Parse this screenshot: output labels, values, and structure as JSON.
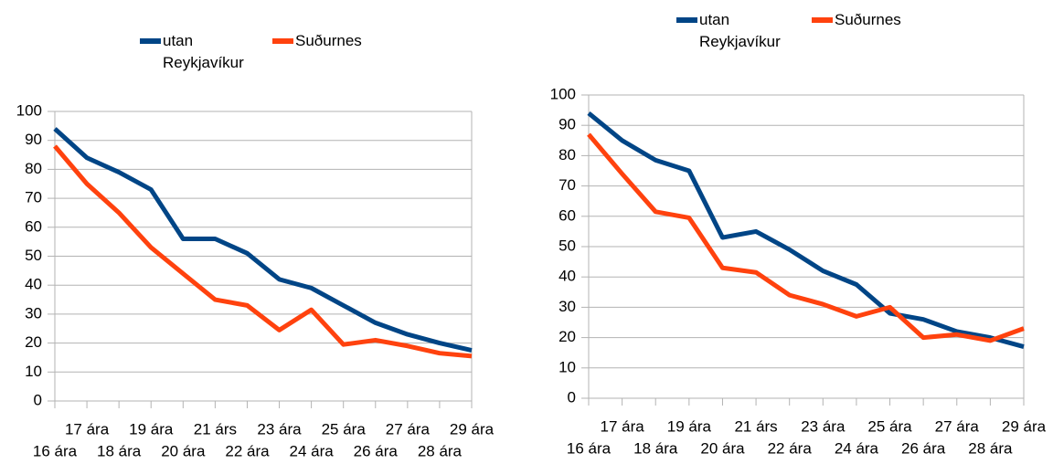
{
  "chart_data": [
    {
      "type": "line",
      "categories": [
        "16 ára",
        "17 ára",
        "18 ára",
        "19 ára",
        "20 ára",
        "21 árs",
        "22 ára",
        "23 ára",
        "24 ára",
        "25 ára",
        "26 ára",
        "27 ára",
        "28 ára",
        "29 ára"
      ],
      "series": [
        {
          "name": "utan Reykjavíkur",
          "color": "#004586",
          "values": [
            94,
            84,
            79,
            73,
            56,
            56,
            51,
            42,
            39,
            33,
            27,
            23,
            20,
            17.5
          ]
        },
        {
          "name": "Suðurnes",
          "color": "#ff420e",
          "values": [
            88,
            75,
            65,
            53,
            44,
            35,
            33,
            24.5,
            31.5,
            19.5,
            21,
            19,
            16.5,
            15.5
          ]
        }
      ],
      "ylim": [
        0,
        100
      ],
      "yticks": [
        0,
        10,
        20,
        30,
        40,
        50,
        60,
        70,
        80,
        90,
        100
      ],
      "grid": true,
      "legend": "top"
    },
    {
      "type": "line",
      "categories": [
        "16 ára",
        "17 ára",
        "18 ára",
        "19 ára",
        "20 ára",
        "21 árs",
        "22 ára",
        "23 ára",
        "24 ára",
        "25 ára",
        "26 ára",
        "27 ára",
        "28 ára",
        "29 ára"
      ],
      "series": [
        {
          "name": "utan Reykjavíkur",
          "color": "#004586",
          "values": [
            94,
            85,
            78.5,
            75,
            53,
            55,
            49,
            42,
            37.5,
            28,
            26,
            22,
            20,
            17
          ]
        },
        {
          "name": "Suðurnes",
          "color": "#ff420e",
          "values": [
            87,
            74,
            61.5,
            59.5,
            43,
            41.5,
            34,
            31,
            27,
            30,
            20,
            21,
            19,
            23
          ]
        }
      ],
      "ylim": [
        0,
        100
      ],
      "yticks": [
        0,
        10,
        20,
        30,
        40,
        50,
        60,
        70,
        80,
        90,
        100
      ],
      "grid": true,
      "legend": "top"
    }
  ]
}
